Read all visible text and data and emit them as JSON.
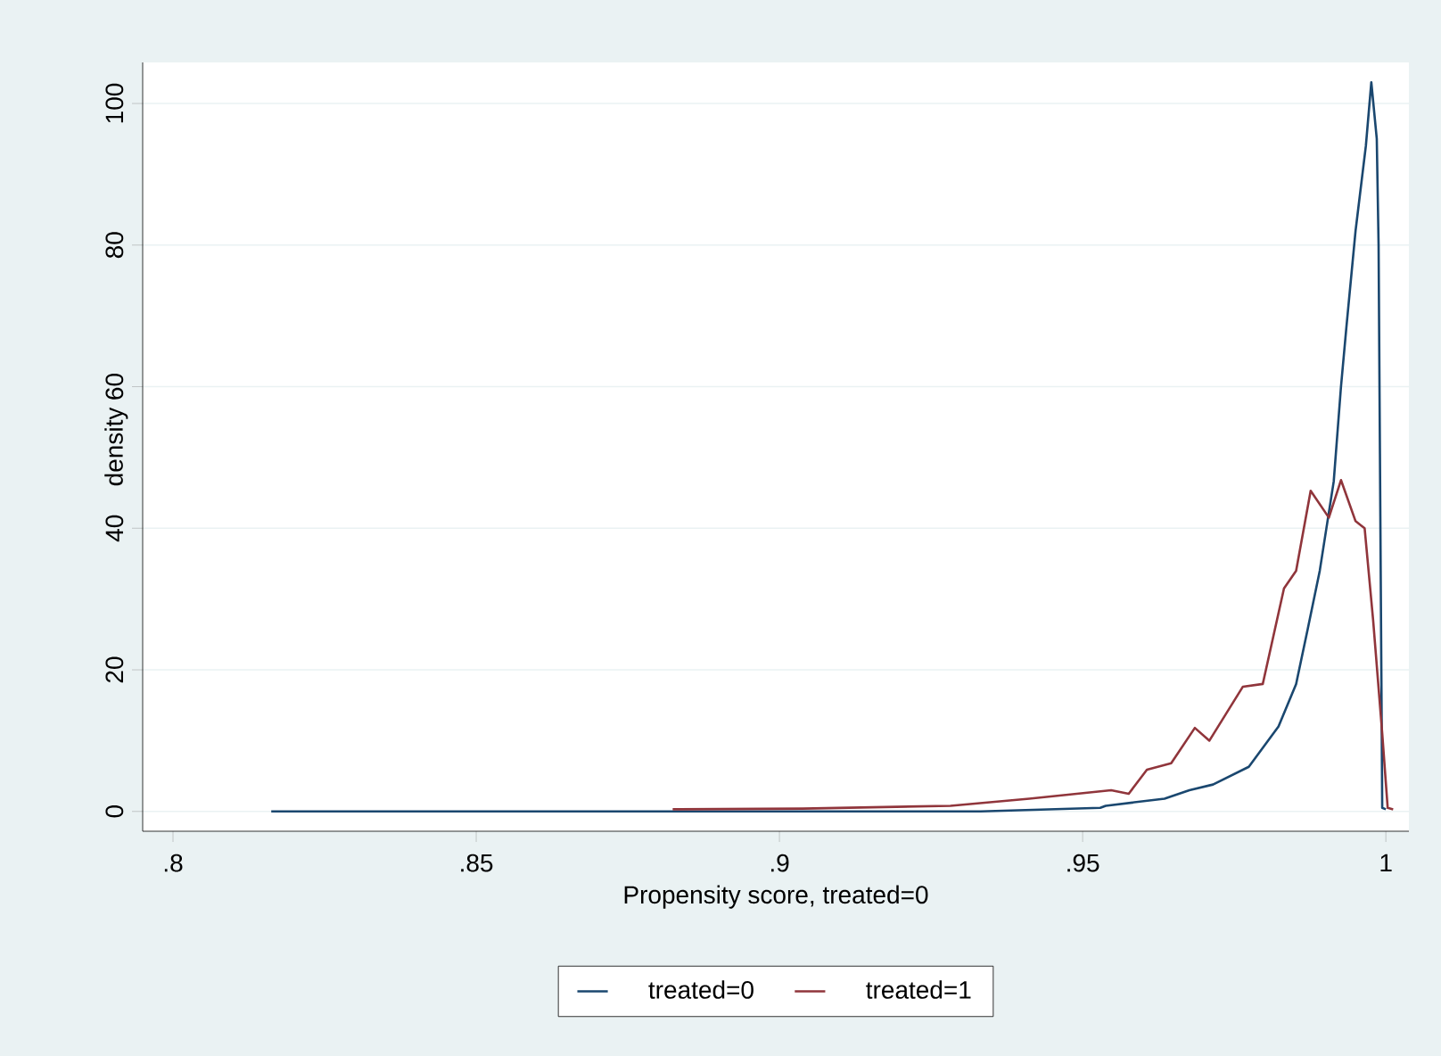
{
  "chart_data": {
    "type": "line",
    "xlabel": "Propensity score, treated=0",
    "ylabel": "density",
    "xlim": [
      0.795,
      1.0038
    ],
    "ylim": [
      -2.8,
      105.8
    ],
    "xticks": [
      {
        "value": 0.8,
        "label": ".8"
      },
      {
        "value": 0.85,
        "label": ".85"
      },
      {
        "value": 0.9,
        "label": ".9"
      },
      {
        "value": 0.95,
        "label": ".95"
      },
      {
        "value": 1,
        "label": "1"
      }
    ],
    "yticks": [
      0,
      20,
      40,
      60,
      80,
      100
    ],
    "grid": "y",
    "legend": "bottom",
    "marker": "none",
    "line_style": "solid",
    "series": [
      {
        "name": "treated=0",
        "color": "#1a476f",
        "x": [
          0.8162,
          0.9332,
          0.9529,
          0.9538,
          0.9635,
          0.9676,
          0.9715,
          0.9774,
          0.9823,
          0.9852,
          0.9871,
          0.9891,
          0.9914,
          0.9926,
          0.9935,
          0.995,
          0.9967,
          0.9976,
          0.9985,
          0.9988,
          0.9994,
          1.0
        ],
        "values": [
          0,
          0,
          0.5,
          0.8,
          1.8,
          3,
          3.8,
          6.3,
          12,
          18,
          25.7,
          34,
          46.6,
          60,
          68.5,
          82,
          94,
          103,
          95,
          80,
          0.5,
          0.3
        ]
      },
      {
        "name": "treated=1",
        "color": "#90353b",
        "x": [
          0.8824,
          0.9038,
          0.9282,
          0.9412,
          0.9547,
          0.9576,
          0.9606,
          0.9646,
          0.9685,
          0.9709,
          0.9764,
          0.9797,
          0.9832,
          0.9852,
          0.9876,
          0.9906,
          0.9926,
          0.995,
          0.9965,
          0.9979,
          0.9994,
          1.0003,
          1.0012
        ],
        "values": [
          0.3,
          0.4,
          0.8,
          1.8,
          3,
          2.5,
          5.9,
          6.8,
          11.8,
          10,
          17.6,
          18,
          31.5,
          34,
          45.3,
          41.5,
          46.8,
          41,
          40,
          27,
          11,
          0.5,
          0.3
        ]
      }
    ]
  }
}
